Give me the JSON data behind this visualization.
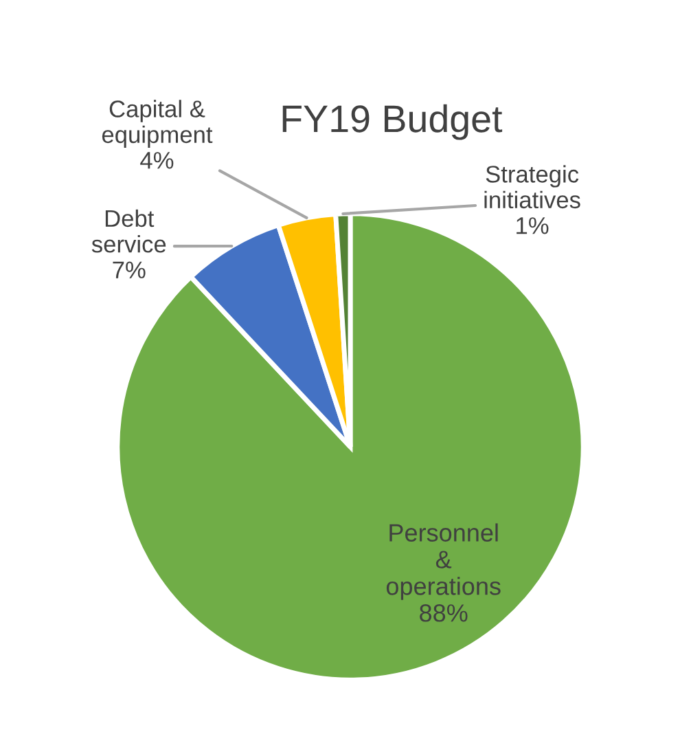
{
  "chart_data": {
    "type": "pie",
    "title": "FY19 Budget",
    "categories": [
      "Personnel\n&\noperations",
      "Debt\nservice",
      "Capital &\nequipment",
      "Strategic\ninitiatives"
    ],
    "values": [
      88,
      7,
      4,
      1
    ],
    "value_labels": [
      "88%",
      "7%",
      "4%",
      "1%"
    ],
    "colors": [
      "#70ad47",
      "#4472c4",
      "#ffc000",
      "#548235"
    ]
  }
}
